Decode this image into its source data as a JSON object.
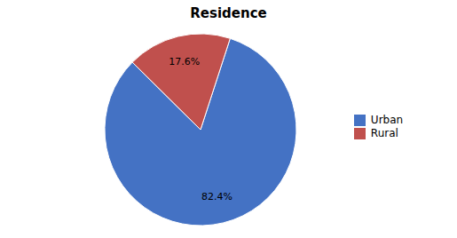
{
  "chart_data": {
    "type": "pie",
    "title": "Residence",
    "categories": [
      "Urban",
      "Rural"
    ],
    "values": [
      82.4,
      17.6
    ],
    "value_labels": [
      "82.4%",
      "17.6%"
    ],
    "data_labels": true,
    "colors": [
      "#4472C4",
      "#C0504D"
    ],
    "legend": "right"
  }
}
